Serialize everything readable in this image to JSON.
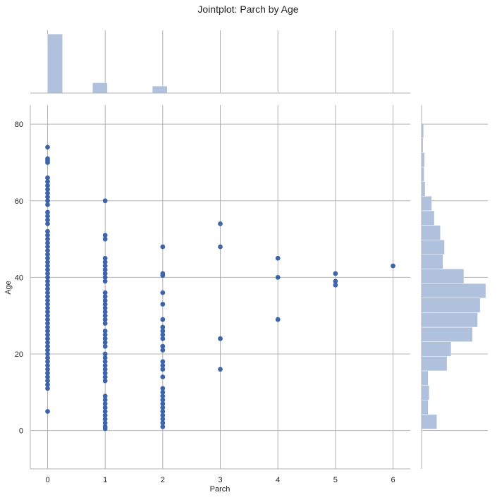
{
  "chart_data": {
    "type": "scatter",
    "title": "Jointplot: Parch by Age",
    "xlabel": "Parch",
    "ylabel": "Age",
    "xlim": [
      -0.3,
      6.3
    ],
    "ylim": [
      -10,
      85
    ],
    "grid": true,
    "x_ticks": [
      0,
      1,
      2,
      3,
      4,
      5,
      6
    ],
    "y_ticks": [
      0,
      20,
      40,
      60,
      80
    ],
    "colors": {
      "points": "#3e65a8",
      "hist": "#b0c1dd",
      "grid": "#b3b3b3",
      "spine": "#b3b3b3"
    },
    "points": [
      [
        0,
        5
      ],
      [
        0,
        11
      ],
      [
        0,
        12
      ],
      [
        0,
        13
      ],
      [
        0,
        14
      ],
      [
        0,
        15
      ],
      [
        0,
        16
      ],
      [
        0,
        17
      ],
      [
        0,
        18
      ],
      [
        0,
        19
      ],
      [
        0,
        20
      ],
      [
        0,
        21
      ],
      [
        0,
        22
      ],
      [
        0,
        23
      ],
      [
        0,
        24
      ],
      [
        0,
        25
      ],
      [
        0,
        26
      ],
      [
        0,
        27
      ],
      [
        0,
        28
      ],
      [
        0,
        29
      ],
      [
        0,
        30
      ],
      [
        0,
        31
      ],
      [
        0,
        32
      ],
      [
        0,
        33
      ],
      [
        0,
        34
      ],
      [
        0,
        35
      ],
      [
        0,
        36
      ],
      [
        0,
        37
      ],
      [
        0,
        38
      ],
      [
        0,
        39
      ],
      [
        0,
        40
      ],
      [
        0,
        41
      ],
      [
        0,
        42
      ],
      [
        0,
        43
      ],
      [
        0,
        44
      ],
      [
        0,
        45
      ],
      [
        0,
        46
      ],
      [
        0,
        47
      ],
      [
        0,
        48
      ],
      [
        0,
        49
      ],
      [
        0,
        50
      ],
      [
        0,
        51
      ],
      [
        0,
        52
      ],
      [
        0,
        54
      ],
      [
        0,
        55
      ],
      [
        0,
        56
      ],
      [
        0,
        57
      ],
      [
        0,
        59
      ],
      [
        0,
        60
      ],
      [
        0,
        61
      ],
      [
        0,
        62
      ],
      [
        0,
        63
      ],
      [
        0,
        64
      ],
      [
        0,
        65
      ],
      [
        0,
        66
      ],
      [
        0,
        70
      ],
      [
        0,
        70.5
      ],
      [
        0,
        71
      ],
      [
        0,
        74
      ],
      [
        1,
        0.5
      ],
      [
        1,
        1
      ],
      [
        1,
        2
      ],
      [
        1,
        3
      ],
      [
        1,
        4
      ],
      [
        1,
        5
      ],
      [
        1,
        6
      ],
      [
        1,
        7
      ],
      [
        1,
        8
      ],
      [
        1,
        9
      ],
      [
        1,
        13
      ],
      [
        1,
        14
      ],
      [
        1,
        15
      ],
      [
        1,
        16
      ],
      [
        1,
        17
      ],
      [
        1,
        18
      ],
      [
        1,
        19
      ],
      [
        1,
        20
      ],
      [
        1,
        22
      ],
      [
        1,
        23
      ],
      [
        1,
        24
      ],
      [
        1,
        25
      ],
      [
        1,
        26
      ],
      [
        1,
        28
      ],
      [
        1,
        29
      ],
      [
        1,
        30
      ],
      [
        1,
        31
      ],
      [
        1,
        32
      ],
      [
        1,
        33
      ],
      [
        1,
        34
      ],
      [
        1,
        35
      ],
      [
        1,
        36
      ],
      [
        1,
        39
      ],
      [
        1,
        40
      ],
      [
        1,
        41
      ],
      [
        1,
        42
      ],
      [
        1,
        43
      ],
      [
        1,
        44
      ],
      [
        1,
        45
      ],
      [
        1,
        50
      ],
      [
        1,
        51
      ],
      [
        1,
        60
      ],
      [
        2,
        1
      ],
      [
        2,
        2
      ],
      [
        2,
        3
      ],
      [
        2,
        4
      ],
      [
        2,
        5
      ],
      [
        2,
        6
      ],
      [
        2,
        7
      ],
      [
        2,
        8
      ],
      [
        2,
        9
      ],
      [
        2,
        10
      ],
      [
        2,
        11
      ],
      [
        2,
        14
      ],
      [
        2,
        16
      ],
      [
        2,
        17
      ],
      [
        2,
        18
      ],
      [
        2,
        21
      ],
      [
        2,
        22
      ],
      [
        2,
        24
      ],
      [
        2,
        25
      ],
      [
        2,
        26
      ],
      [
        2,
        27
      ],
      [
        2,
        29
      ],
      [
        2,
        33
      ],
      [
        2,
        36
      ],
      [
        2,
        40.5
      ],
      [
        2,
        41
      ],
      [
        2,
        48
      ],
      [
        3,
        16
      ],
      [
        3,
        24
      ],
      [
        3,
        48
      ],
      [
        3,
        54
      ],
      [
        4,
        29
      ],
      [
        4,
        40
      ],
      [
        4,
        45
      ],
      [
        5,
        38
      ],
      [
        5,
        39
      ],
      [
        5,
        41
      ],
      [
        6,
        43
      ]
    ],
    "marginal_x": {
      "bins": [
        {
          "start": 0.0,
          "end": 0.26,
          "count": 678
        },
        {
          "start": 0.78,
          "end": 1.04,
          "count": 118
        },
        {
          "start": 1.82,
          "end": 2.08,
          "count": 80
        },
        {
          "start": 2.86,
          "end": 3.12,
          "count": 5
        },
        {
          "start": 3.9,
          "end": 4.16,
          "count": 4
        },
        {
          "start": 4.94,
          "end": 5.2,
          "count": 5
        },
        {
          "start": 5.98,
          "end": 6.24,
          "count": 1
        }
      ],
      "ymax": 720
    },
    "marginal_y": {
      "bin_width": 3.8,
      "start": 0.4,
      "counts": [
        30,
        13,
        15,
        13,
        50,
        58,
        100,
        110,
        115,
        126,
        83,
        42,
        45,
        37,
        25,
        20,
        7,
        5,
        6,
        3,
        4
      ],
      "xmax": 130
    }
  }
}
